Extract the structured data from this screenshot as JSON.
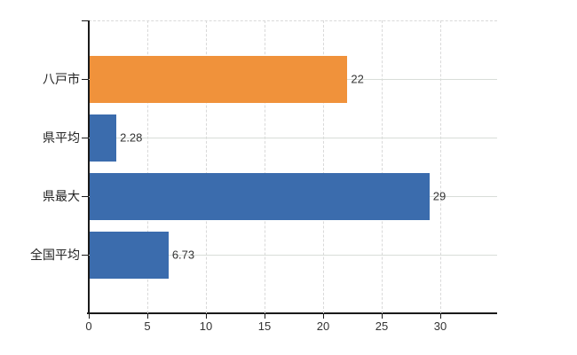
{
  "chart_data": {
    "type": "bar",
    "orientation": "horizontal",
    "title": "",
    "categories": [
      "八戸市",
      "県平均",
      "県最大",
      "全国平均"
    ],
    "values": [
      22,
      2.28,
      29,
      6.73
    ],
    "value_labels": [
      "22",
      "2.28",
      "29",
      "6.73"
    ],
    "bar_colors": [
      "#F0923B",
      "#3B6CAD",
      "#3B6CAD",
      "#3B6CAD"
    ],
    "x_ticks": [
      0,
      5,
      10,
      15,
      20,
      25,
      30
    ],
    "x_tick_labels": [
      "0",
      "5",
      "10",
      "15",
      "20",
      "25",
      "30"
    ],
    "xlim": [
      0,
      34.85
    ],
    "grid": true,
    "legend": false,
    "gridline_style": "vertical dashed, horizontal solid through bar centers, dashed top border"
  },
  "colors": {
    "background": "#ffffff",
    "axis": "#1a1a1a",
    "grid": "#d9d9d9",
    "text": "#333333",
    "bar_orange": "#F0923B",
    "bar_blue": "#3B6CAD"
  }
}
